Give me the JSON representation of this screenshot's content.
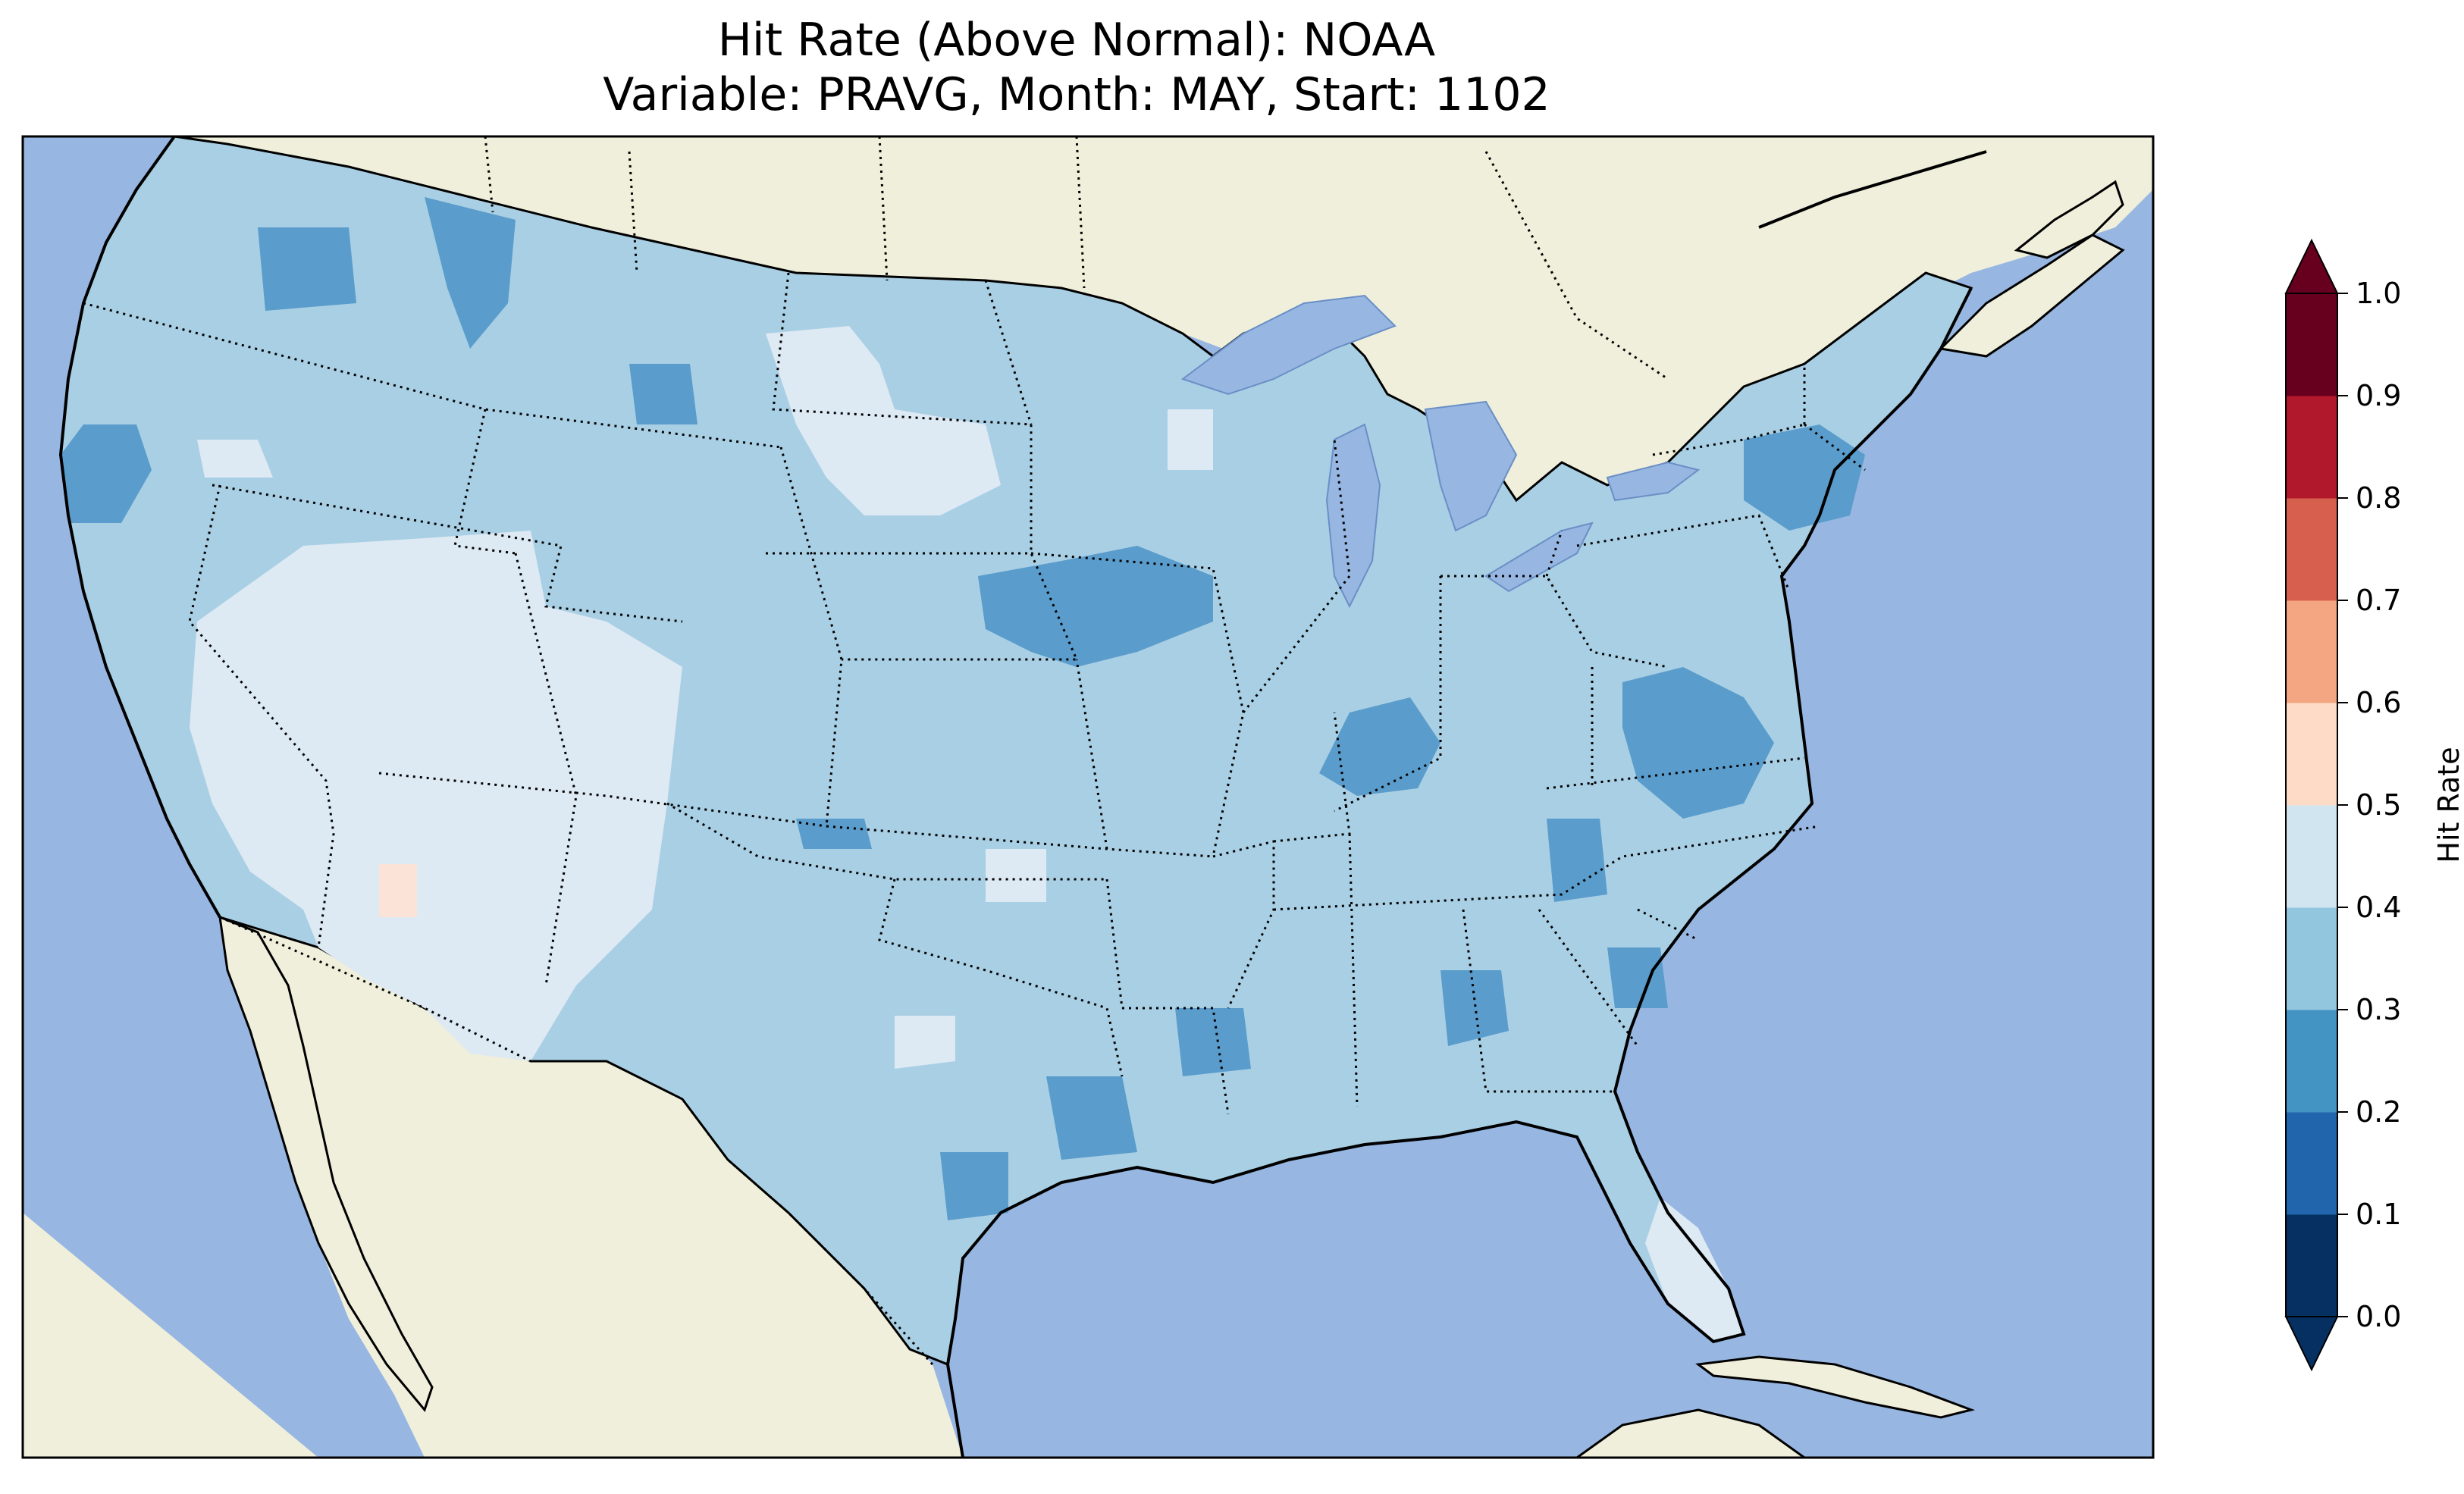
{
  "title": {
    "line1": "Hit Rate (Above Normal): NOAA",
    "line2": "Variable: PRAVG, Month: MAY, Start: 1102"
  },
  "colors": {
    "ocean": "#97b6e1",
    "land": "#efefdb",
    "lakes": "#97b6e1",
    "border": "#000000"
  },
  "colorbar": {
    "label": "Hit Rate",
    "ticks": [
      "0.0",
      "0.1",
      "0.2",
      "0.3",
      "0.4",
      "0.5",
      "0.6",
      "0.7",
      "0.8",
      "0.9",
      "1.0"
    ],
    "bins": [
      {
        "from": 0.0,
        "to": 0.1,
        "color": "#053061"
      },
      {
        "from": 0.1,
        "to": 0.2,
        "color": "#2166ac"
      },
      {
        "from": 0.2,
        "to": 0.3,
        "color": "#4393c3"
      },
      {
        "from": 0.3,
        "to": 0.4,
        "color": "#92c5de"
      },
      {
        "from": 0.4,
        "to": 0.5,
        "color": "#d1e5f0"
      },
      {
        "from": 0.5,
        "to": 0.6,
        "color": "#fddbc7"
      },
      {
        "from": 0.6,
        "to": 0.7,
        "color": "#f4a582"
      },
      {
        "from": 0.7,
        "to": 0.8,
        "color": "#d6604d"
      },
      {
        "from": 0.8,
        "to": 0.9,
        "color": "#b2182b"
      },
      {
        "from": 0.9,
        "to": 1.0,
        "color": "#67001f"
      }
    ],
    "under_color": "#053061",
    "over_color": "#67001f"
  },
  "map_regions": [
    {
      "name": "conus-base",
      "level": "0.3-0.4",
      "color": "#a9cfe4"
    },
    {
      "name": "southwest-high",
      "level": "0.4-0.5",
      "color": "#dde9f3"
    },
    {
      "name": "dakotas-high",
      "level": "0.4-0.5",
      "color": "#dde9f3"
    },
    {
      "name": "florida-high",
      "level": "0.4-0.5",
      "color": "#dde9f3"
    },
    {
      "name": "pacific-nw-low",
      "level": "0.2-0.3",
      "color": "#5a9ccb"
    },
    {
      "name": "iowa-low",
      "level": "0.2-0.3",
      "color": "#5a9ccb"
    },
    {
      "name": "virginia-low",
      "level": "0.2-0.3",
      "color": "#5a9ccb"
    },
    {
      "name": "northeast-low",
      "level": "0.2-0.3",
      "color": "#5a9ccb"
    },
    {
      "name": "arizona-spot",
      "level": "0.5-0.6",
      "color": "#fbe3d8"
    }
  ]
}
